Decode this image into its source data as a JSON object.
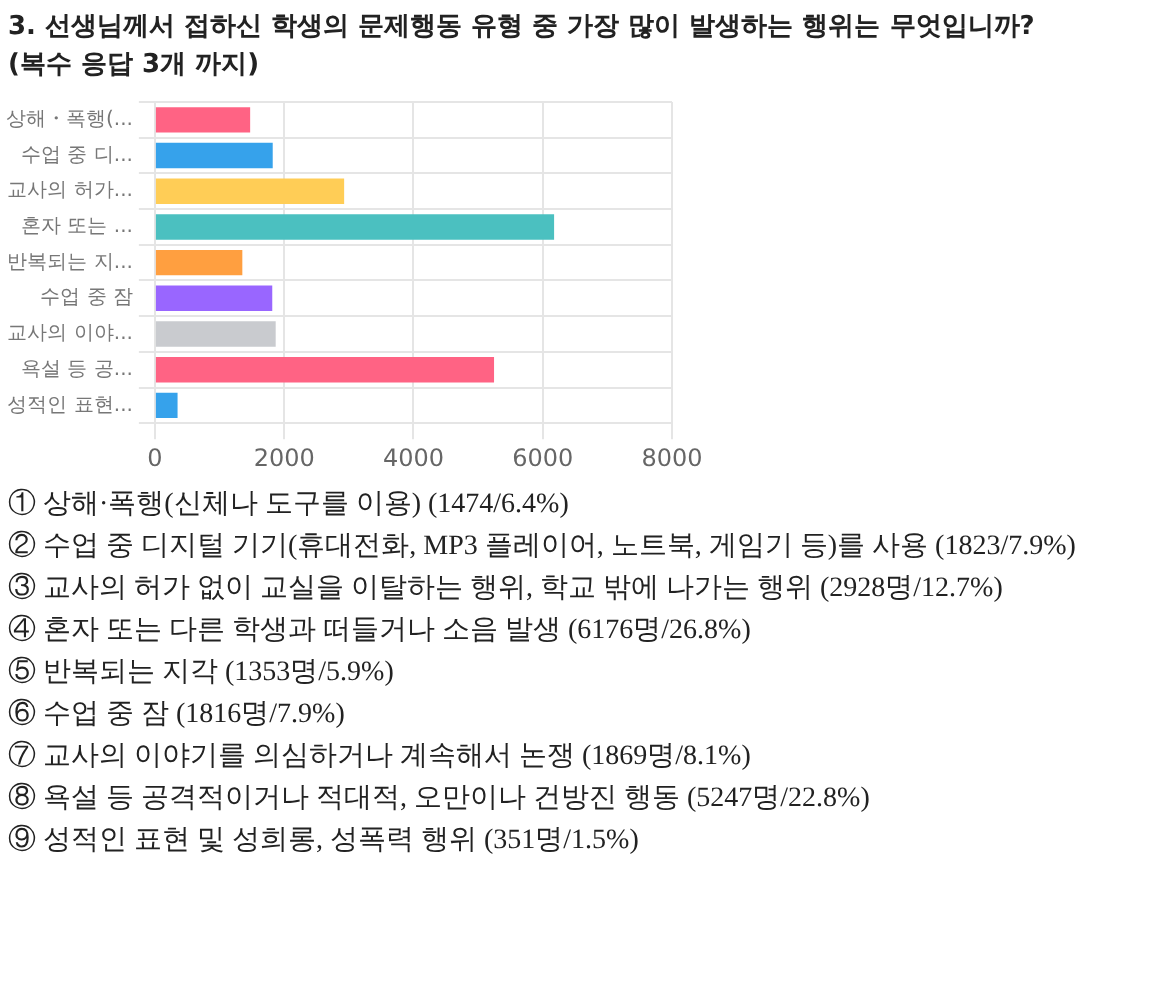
{
  "chart_data": {
    "type": "bar",
    "orientation": "horizontal",
    "title": "3. 선생님께서 접하신 학생의 문제행동 유형 중 가장 많이 발생하는 행위는 무엇입니까?",
    "subtitle": "(복수 응답 3개 까지)",
    "categories": [
      "상해・폭행(...",
      "수업 중 디...",
      "교사의 허가...",
      "혼자 또는 ...",
      "반복되는 지...",
      "수업 중 잠",
      "교사의 이야...",
      "욕설 등 공...",
      "성적인 표현..."
    ],
    "values": [
      1474,
      1823,
      2928,
      6176,
      1353,
      1816,
      1869,
      5247,
      351
    ],
    "colors": [
      "#ff6384",
      "#36a2eb",
      "#ffcd56",
      "#4bc0c0",
      "#ff9f40",
      "#9966ff",
      "#c9cbcf",
      "#ff6384",
      "#36a2eb"
    ],
    "xlim": [
      0,
      8000
    ],
    "xticks": [
      0,
      2000,
      4000,
      6000,
      8000
    ],
    "grid": true,
    "annotations": [
      "① 상해·폭행(신체나 도구를 이용) (1474/6.4%)",
      "② 수업 중 디지털 기기(휴대전화, MP3 플레이어, 노트북, 게임기 등)를 사용 (1823/7.9%)",
      "③ 교사의 허가 없이 교실을 이탈하는 행위, 학교 밖에 나가는 행위 (2928명/12.7%)",
      "④ 혼자 또는 다른 학생과 떠들거나 소음 발생 (6176명/26.8%)",
      "⑤ 반복되는 지각 (1353명/5.9%)",
      "⑥ 수업 중 잠 (1816명/7.9%)",
      "⑦ 교사의 이야기를 의심하거나 계속해서 논쟁 (1869명/8.1%)",
      "⑧ 욕설 등 공격적이거나 적대적, 오만이나 건방진 행동 (5247명/22.8%)",
      "⑨ 성적인 표현 및 성희롱, 성폭력 행위 (351명/1.5%)"
    ]
  }
}
